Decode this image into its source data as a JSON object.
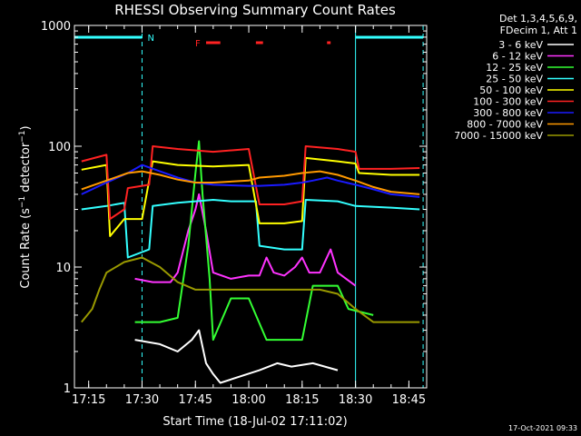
{
  "chart_data": {
    "type": "line",
    "title": "RHESSI Observing Summary Count Rates",
    "xlabel": "Start Time (18-Jul-02 17:11:02)",
    "ylabel": "Count Rate (s⁻¹ detector⁻¹)",
    "ylabel_parts": {
      "main": "Count Rate (s",
      "sup1": "−1",
      "mid": " detector",
      "sup2": "−1",
      "end": ")"
    },
    "yscale": "log",
    "ylim": [
      1,
      1000
    ],
    "xlim": [
      "17:11",
      "18:50"
    ],
    "x_ticks": [
      "17:15",
      "17:30",
      "17:45",
      "18:00",
      "18:15",
      "18:30",
      "18:45"
    ],
    "y_ticks": [
      "1",
      "10",
      "100",
      "1000"
    ],
    "detector_info": [
      "Det 1,3,4,5,6,9,",
      "FDecim 1, Att 1"
    ],
    "timestamp": "17-Oct-2021 09:33",
    "flags": {
      "night_label": "N",
      "flare_label": "F"
    },
    "series": [
      {
        "name": "3 - 6 keV",
        "color": "#ffffff",
        "points": [
          [
            "17:28",
            2.5
          ],
          [
            "17:35",
            2.3
          ],
          [
            "17:40",
            2.0
          ],
          [
            "17:44",
            2.5
          ],
          [
            "17:46",
            3.0
          ],
          [
            "17:48",
            1.6
          ],
          [
            "17:50",
            1.3
          ],
          [
            "17:52",
            1.1
          ],
          [
            "18:03",
            1.4
          ],
          [
            "18:08",
            1.6
          ],
          [
            "18:12",
            1.5
          ],
          [
            "18:18",
            1.6
          ],
          [
            "18:25",
            1.4
          ]
        ]
      },
      {
        "name": "6 - 12 keV",
        "color": "#ff33ff",
        "points": [
          [
            "17:28",
            8.0
          ],
          [
            "17:33",
            7.5
          ],
          [
            "17:38",
            7.5
          ],
          [
            "17:40",
            9.0
          ],
          [
            "17:43",
            20
          ],
          [
            "17:45",
            30
          ],
          [
            "17:46",
            40
          ],
          [
            "17:48",
            20
          ],
          [
            "17:50",
            9.0
          ],
          [
            "17:55",
            8.0
          ],
          [
            "18:00",
            8.5
          ],
          [
            "18:03",
            8.5
          ],
          [
            "18:05",
            12
          ],
          [
            "18:07",
            9.0
          ],
          [
            "18:10",
            8.5
          ],
          [
            "18:13",
            10
          ],
          [
            "18:15",
            12
          ],
          [
            "18:17",
            9.0
          ],
          [
            "18:20",
            9.0
          ],
          [
            "18:23",
            14
          ],
          [
            "18:25",
            9.0
          ],
          [
            "18:30",
            7.0
          ]
        ]
      },
      {
        "name": "12 - 25 keV",
        "color": "#33ff33",
        "points": [
          [
            "17:28",
            3.5
          ],
          [
            "17:35",
            3.5
          ],
          [
            "17:40",
            3.8
          ],
          [
            "17:43",
            15
          ],
          [
            "17:45",
            60
          ],
          [
            "17:46",
            110
          ],
          [
            "17:47",
            40
          ],
          [
            "17:49",
            8.0
          ],
          [
            "17:50",
            2.5
          ],
          [
            "17:55",
            5.5
          ],
          [
            "18:00",
            5.5
          ],
          [
            "18:05",
            2.5
          ],
          [
            "18:10",
            2.5
          ],
          [
            "18:15",
            2.5
          ],
          [
            "18:18",
            7.0
          ],
          [
            "18:25",
            7.0
          ],
          [
            "18:28",
            4.5
          ],
          [
            "18:35",
            4.0
          ]
        ]
      },
      {
        "name": "25 - 50 keV",
        "color": "#33ffff",
        "points": [
          [
            "17:13",
            30
          ],
          [
            "17:20",
            32
          ],
          [
            "17:25",
            34
          ],
          [
            "17:26",
            12
          ],
          [
            "17:32",
            14
          ],
          [
            "17:33",
            32
          ],
          [
            "17:40",
            34
          ],
          [
            "17:45",
            35
          ],
          [
            "17:50",
            36
          ],
          [
            "17:55",
            35
          ],
          [
            "18:00",
            35
          ],
          [
            "18:02",
            35
          ],
          [
            "18:03",
            15
          ],
          [
            "18:10",
            14
          ],
          [
            "18:15",
            14
          ],
          [
            "18:16",
            36
          ],
          [
            "18:25",
            35
          ],
          [
            "18:30",
            32
          ],
          [
            "18:40",
            31
          ],
          [
            "18:48",
            30
          ]
        ]
      },
      {
        "name": "50 - 100 keV",
        "color": "#ffff00",
        "points": [
          [
            "17:13",
            64
          ],
          [
            "17:20",
            70
          ],
          [
            "17:21",
            18
          ],
          [
            "17:25",
            25
          ],
          [
            "17:26",
            25
          ],
          [
            "17:30",
            25
          ],
          [
            "17:33",
            75
          ],
          [
            "17:40",
            70
          ],
          [
            "17:50",
            68
          ],
          [
            "18:00",
            70
          ],
          [
            "18:03",
            23
          ],
          [
            "18:10",
            23
          ],
          [
            "18:15",
            24
          ],
          [
            "18:16",
            80
          ],
          [
            "18:25",
            75
          ],
          [
            "18:30",
            72
          ],
          [
            "18:31",
            60
          ],
          [
            "18:40",
            58
          ],
          [
            "18:48",
            58
          ]
        ]
      },
      {
        "name": "100 - 300 keV",
        "color": "#ff2222",
        "points": [
          [
            "17:13",
            75
          ],
          [
            "17:20",
            85
          ],
          [
            "17:21",
            25
          ],
          [
            "17:25",
            30
          ],
          [
            "17:26",
            45
          ],
          [
            "17:32",
            48
          ],
          [
            "17:33",
            100
          ],
          [
            "17:40",
            95
          ],
          [
            "17:50",
            90
          ],
          [
            "18:00",
            95
          ],
          [
            "18:03",
            33
          ],
          [
            "18:10",
            33
          ],
          [
            "18:15",
            35
          ],
          [
            "18:16",
            100
          ],
          [
            "18:25",
            95
          ],
          [
            "18:30",
            90
          ],
          [
            "18:31",
            65
          ],
          [
            "18:40",
            65
          ],
          [
            "18:48",
            66
          ]
        ]
      },
      {
        "name": "300 - 800 keV",
        "color": "#1a1aff",
        "points": [
          [
            "17:13",
            40
          ],
          [
            "17:20",
            50
          ],
          [
            "17:26",
            60
          ],
          [
            "17:30",
            70
          ],
          [
            "17:35",
            62
          ],
          [
            "17:40",
            55
          ],
          [
            "17:45",
            50
          ],
          [
            "17:50",
            48
          ],
          [
            "18:00",
            47
          ],
          [
            "18:03",
            47
          ],
          [
            "18:10",
            48
          ],
          [
            "18:15",
            50
          ],
          [
            "18:18",
            52
          ],
          [
            "18:22",
            55
          ],
          [
            "18:25",
            52
          ],
          [
            "18:30",
            48
          ],
          [
            "18:35",
            44
          ],
          [
            "18:40",
            40
          ],
          [
            "18:48",
            38
          ]
        ]
      },
      {
        "name": "800 - 7000 keV",
        "color": "#ff9900",
        "points": [
          [
            "17:13",
            44
          ],
          [
            "17:20",
            52
          ],
          [
            "17:26",
            60
          ],
          [
            "17:30",
            62
          ],
          [
            "17:35",
            58
          ],
          [
            "17:40",
            53
          ],
          [
            "17:45",
            50
          ],
          [
            "17:50",
            50
          ],
          [
            "18:00",
            52
          ],
          [
            "18:03",
            55
          ],
          [
            "18:10",
            57
          ],
          [
            "18:15",
            60
          ],
          [
            "18:20",
            62
          ],
          [
            "18:25",
            58
          ],
          [
            "18:30",
            52
          ],
          [
            "18:35",
            46
          ],
          [
            "18:40",
            42
          ],
          [
            "18:48",
            40
          ]
        ]
      },
      {
        "name": "7000 - 15000 keV",
        "color": "#999900",
        "points": [
          [
            "17:13",
            3.5
          ],
          [
            "17:16",
            4.5
          ],
          [
            "17:18",
            6.5
          ],
          [
            "17:20",
            9.0
          ],
          [
            "17:25",
            11
          ],
          [
            "17:30",
            12
          ],
          [
            "17:35",
            10
          ],
          [
            "17:40",
            7.5
          ],
          [
            "17:45",
            6.5
          ],
          [
            "17:50",
            6.5
          ],
          [
            "18:00",
            6.5
          ],
          [
            "18:10",
            6.5
          ],
          [
            "18:20",
            6.5
          ],
          [
            "18:25",
            6.0
          ],
          [
            "18:30",
            4.5
          ],
          [
            "18:35",
            3.5
          ],
          [
            "18:48",
            3.5
          ]
        ]
      }
    ],
    "night_intervals": [
      [
        "17:11",
        "17:30"
      ],
      [
        "18:30",
        "18:49"
      ]
    ],
    "flare_intervals": [
      [
        "17:48",
        "17:52"
      ],
      [
        "18:02",
        "18:04"
      ],
      [
        "18:22",
        "18:23"
      ]
    ],
    "dashed_markers": [
      "17:30",
      "18:49"
    ],
    "solid_markers": [
      "17:11",
      "18:30"
    ]
  }
}
